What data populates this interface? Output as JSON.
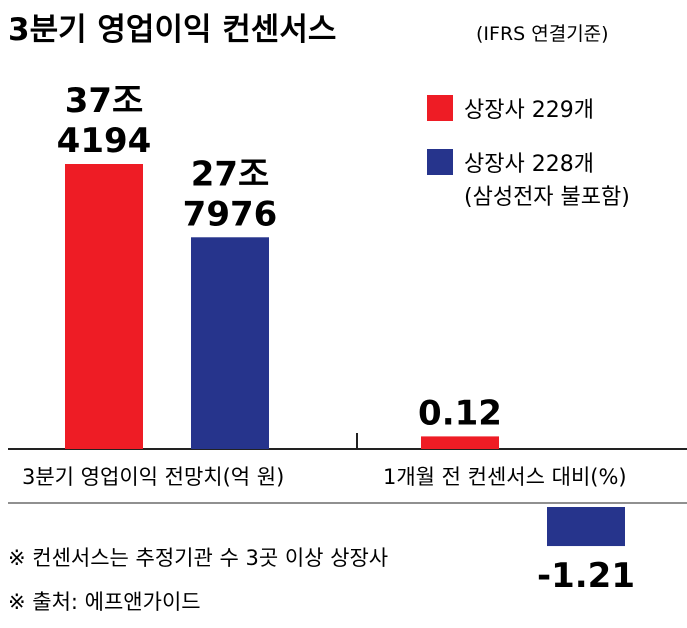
{
  "title": "3분기 영업이익 컨센서스",
  "subtitle": "(IFRS 연결기준)",
  "colors": {
    "red": "#ee1c25",
    "blue": "#26348c",
    "axis": "#222222"
  },
  "chart_data": [
    {
      "type": "bar",
      "category_label": "3분기 영업이익 전망치(억 원)",
      "series": [
        {
          "name": "상장사 229개",
          "value": 374194,
          "label_lines": [
            "37조",
            "4194"
          ]
        },
        {
          "name": "상장사 228개 (삼성전자 불포함)",
          "value": 277976,
          "label_lines": [
            "27조",
            "7976"
          ]
        }
      ]
    },
    {
      "type": "bar",
      "category_label": "1개월 전 컨센서스 대비(%)",
      "series": [
        {
          "name": "상장사 229개",
          "value": 0.12,
          "label": "0.12"
        },
        {
          "name": "상장사 228개 (삼성전자 불포함)",
          "value": -1.21,
          "label": "-1.21"
        }
      ]
    }
  ],
  "legend": [
    {
      "label": "상장사 229개",
      "color": "#ee1c25"
    },
    {
      "label": "상장사 228개",
      "sublabel": "(삼성전자 불포함)",
      "color": "#26348c"
    }
  ],
  "notes": [
    "※ 컨센서스는 추정기관 수 3곳 이상 상장사",
    "※ 출처: 에프앤가이드"
  ]
}
